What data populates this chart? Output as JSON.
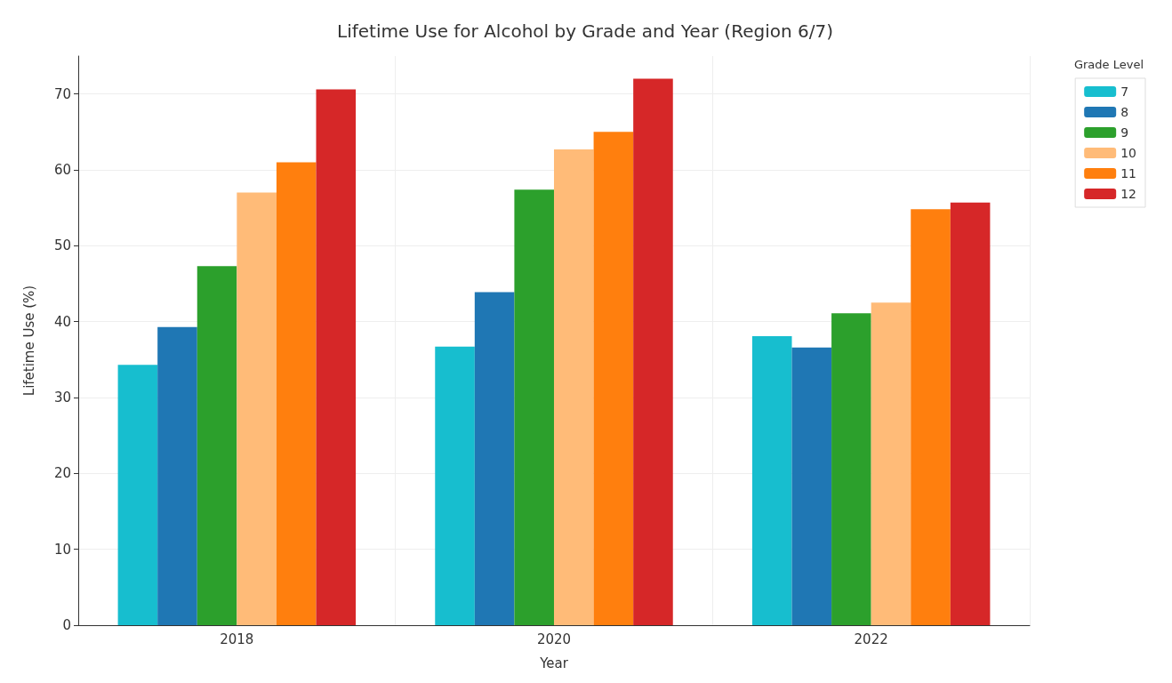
{
  "chart_data": {
    "type": "bar",
    "title": "Lifetime Use for Alcohol by Grade and Year (Region 6/7)",
    "xlabel": "Year",
    "ylabel": "Lifetime Use (%)",
    "legend_title": "Grade Level",
    "categories": [
      "2018",
      "2020",
      "2022"
    ],
    "series": [
      {
        "name": "7",
        "color": "#17becf",
        "values": [
          34.3,
          36.7,
          38.1
        ]
      },
      {
        "name": "8",
        "color": "#1f77b4",
        "values": [
          39.3,
          43.9,
          36.6
        ]
      },
      {
        "name": "9",
        "color": "#2ca02c",
        "values": [
          47.3,
          57.4,
          41.1
        ]
      },
      {
        "name": "10",
        "color": "#ffbb78",
        "values": [
          57.0,
          62.7,
          42.5
        ]
      },
      {
        "name": "11",
        "color": "#ff7f0e",
        "values": [
          61.0,
          65.0,
          54.8
        ]
      },
      {
        "name": "12",
        "color": "#d62728",
        "values": [
          70.6,
          72.0,
          55.7
        ]
      }
    ],
    "ylim": [
      0,
      75
    ],
    "yticks": [
      0,
      10,
      20,
      30,
      40,
      50,
      60,
      70
    ],
    "grid": true,
    "legend": "top right"
  }
}
